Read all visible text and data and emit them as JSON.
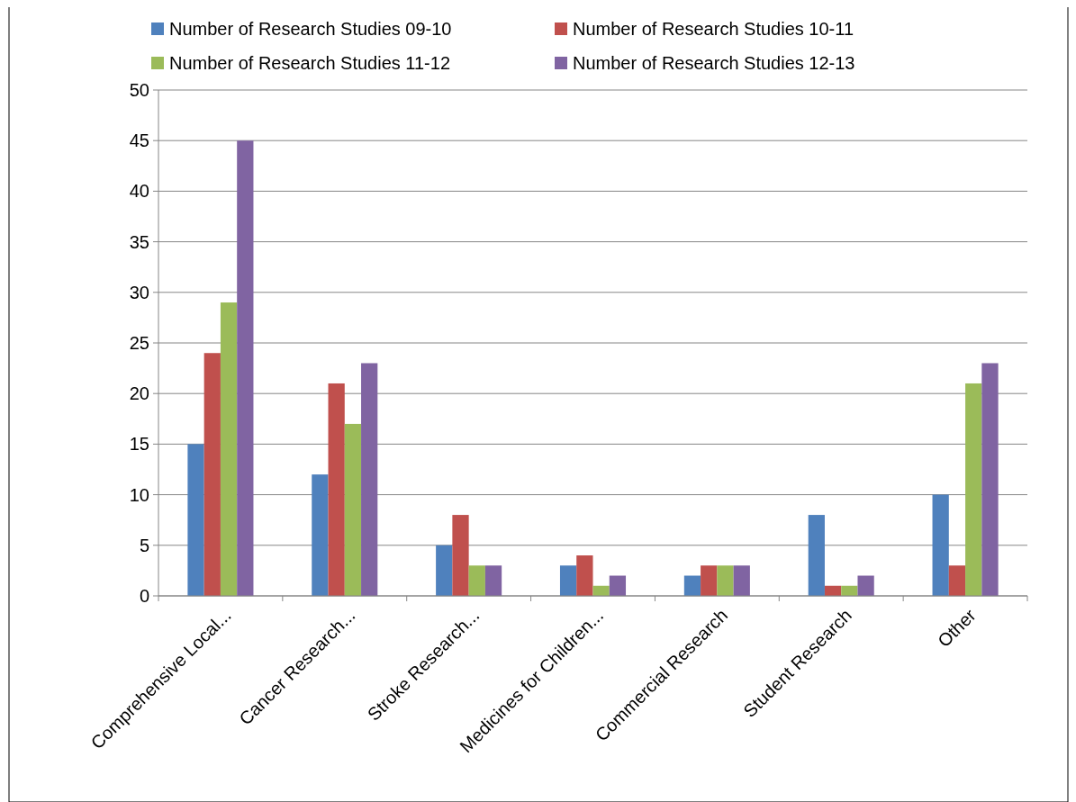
{
  "chart_data": {
    "type": "bar",
    "categories": [
      "Comprehensive Local...",
      "Cancer Research...",
      "Stroke Research...",
      "Medicines for Children...",
      "Commercial Research",
      "Student Research",
      "Other"
    ],
    "series": [
      {
        "name": "Number of Research Studies 09-10",
        "color": "#4f81bd",
        "values": [
          15,
          12,
          5,
          3,
          2,
          8,
          10
        ]
      },
      {
        "name": "Number of Research Studies 10-11",
        "color": "#c0504d",
        "values": [
          24,
          21,
          8,
          4,
          3,
          1,
          3
        ]
      },
      {
        "name": "Number of Research Studies 11-12",
        "color": "#9bbb59",
        "values": [
          29,
          17,
          3,
          1,
          3,
          1,
          21
        ]
      },
      {
        "name": "Number of Research Studies 12-13",
        "color": "#8064a2",
        "values": [
          45,
          23,
          3,
          2,
          3,
          2,
          23
        ]
      }
    ],
    "ylim": [
      0,
      50
    ],
    "yticks": [
      0,
      5,
      10,
      15,
      20,
      25,
      30,
      35,
      40,
      45,
      50
    ],
    "grid": "y",
    "legend": "top"
  }
}
